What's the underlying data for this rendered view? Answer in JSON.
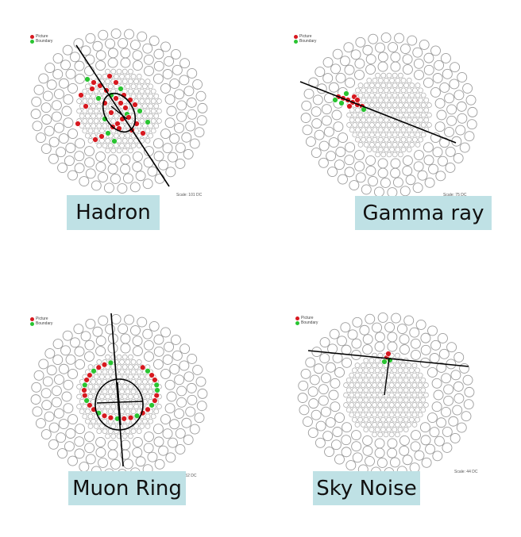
{
  "colors": {
    "picture": "#d71920",
    "boundary": "#29c431",
    "label_bg": "#bfe1e5"
  },
  "legend": {
    "picture": "Picture",
    "boundary": "Boundary"
  },
  "panels": [
    {
      "id": "hadron",
      "label": "Hadron",
      "scale": "Scale: 101 DC"
    },
    {
      "id": "gamma",
      "label": "Gamma ray",
      "scale": "Scale: 75 DC"
    },
    {
      "id": "muon",
      "label": "Muon Ring",
      "scale": "Scale: 52 DC"
    },
    {
      "id": "skynoise",
      "label": "Sky Noise",
      "scale": "Scale: 44 DC"
    }
  ]
}
